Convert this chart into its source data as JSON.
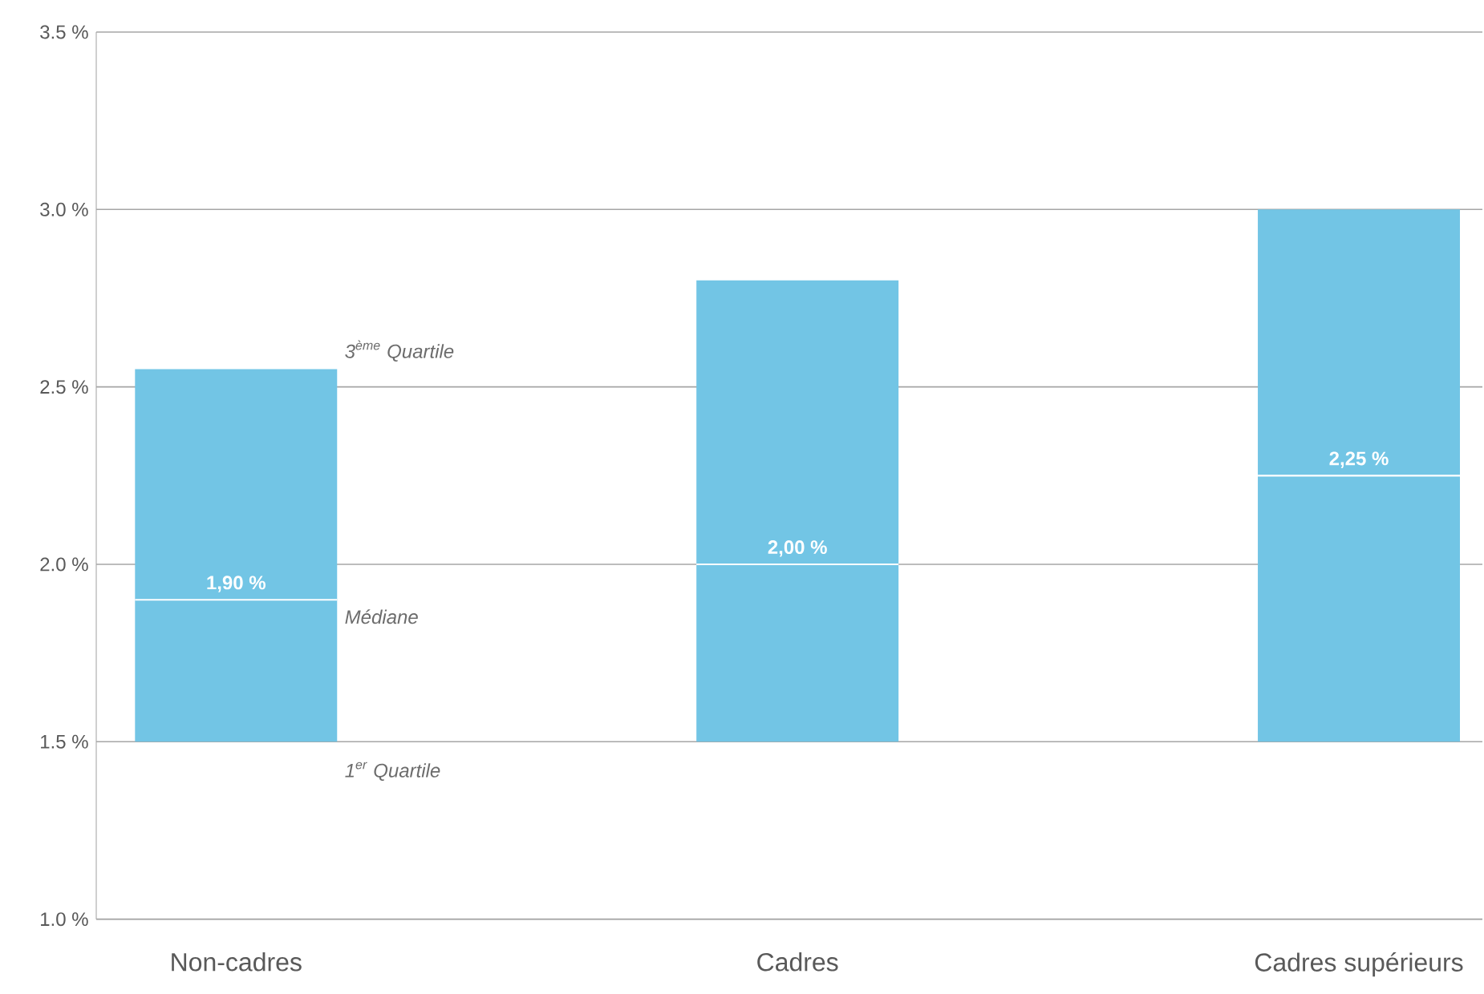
{
  "chart_data": {
    "type": "box",
    "categories": [
      "Non-cadres",
      "Cadres",
      "Cadres supérieurs"
    ],
    "color": "#72c5e5",
    "boxes": [
      {
        "low": 1.5,
        "q1": 1.5,
        "median": 1.9,
        "q3": 2.55,
        "high": 2.55
      },
      {
        "low": 1.5,
        "q1": 1.5,
        "median": 2.0,
        "q3": 2.8,
        "high": 2.8
      },
      {
        "low": 1.5,
        "q1": 1.5,
        "median": 2.25,
        "q3": 3.0,
        "high": 3.0
      }
    ],
    "ylim": [
      1.0,
      3.5
    ],
    "yticks": [
      {
        "value": 1.0,
        "label": "1.0 %"
      },
      {
        "value": 1.5,
        "label": "1.5 %"
      },
      {
        "value": 2.0,
        "label": "2.0 %"
      },
      {
        "value": 2.5,
        "label": "2.5 %"
      },
      {
        "value": 3.0,
        "label": "3.0 %"
      },
      {
        "value": 3.5,
        "label": "3.5 %"
      }
    ],
    "grid": "y",
    "annotations": [
      {
        "text": "1,90 %",
        "x": "Non-cadres",
        "y": 1.9
      },
      {
        "text": "2,00 %",
        "x": "Cadres",
        "y": 2.0
      },
      {
        "text": "2,25 %",
        "x": "Cadres supérieurs",
        "y": 2.25
      },
      "3$^{ème}$ Quartile",
      "Médiane",
      "1$^{er}$ Quartile"
    ]
  }
}
